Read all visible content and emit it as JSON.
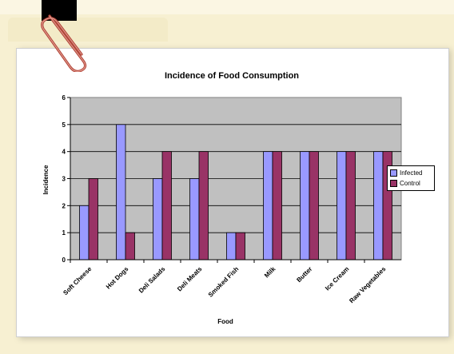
{
  "chart_data": {
    "type": "bar",
    "title": "Incidence of Food Consumption",
    "xlabel": "Food",
    "ylabel": "Incidence",
    "categories": [
      "Soft Cheese",
      "Hot Dogs",
      "Deli Salads",
      "Deli Meats",
      "Smoked Fish",
      "Milk",
      "Butter",
      "Ice Cream",
      "Raw Vegetables"
    ],
    "series": [
      {
        "name": "Infected",
        "values": [
          2,
          5,
          3,
          3,
          1,
          4,
          4,
          4,
          4
        ],
        "color": "#9999ff"
      },
      {
        "name": "Control",
        "values": [
          3,
          1,
          4,
          4,
          1,
          4,
          4,
          4,
          4
        ],
        "color": "#993366"
      }
    ],
    "ylim": [
      0,
      6
    ],
    "yticks": [
      "0",
      "1",
      "2",
      "3",
      "4",
      "5",
      "6"
    ],
    "grid": true,
    "plot_background": "#c0c0c0",
    "legend_position": "right"
  }
}
